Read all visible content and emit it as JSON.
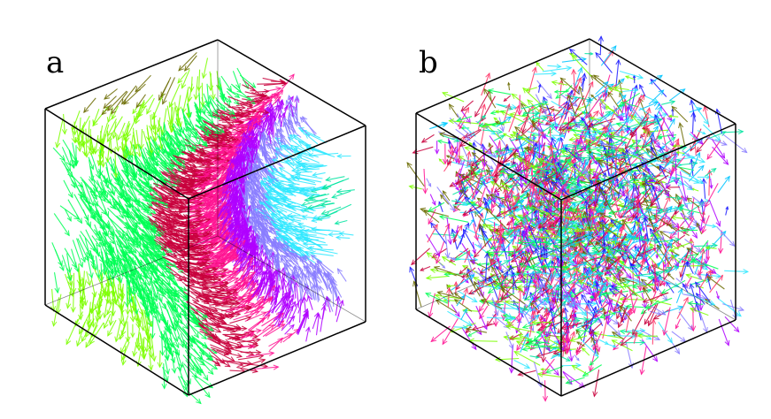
{
  "figure": {
    "panels": [
      {
        "label": "a",
        "arrow_field": "smooth-domains"
      },
      {
        "label": "b",
        "arrow_field": "disordered"
      }
    ],
    "colors": {
      "cube_edge": "#000000",
      "domain_palette": [
        "#00e5a0",
        "#2ee8ff",
        "#8a7dff",
        "#b000ff",
        "#ff1493",
        "#c8003c",
        "#00ff55",
        "#7cff00",
        "#6b6b00",
        "#1a1aff",
        "#ff3366",
        "#00c4ff"
      ]
    }
  }
}
